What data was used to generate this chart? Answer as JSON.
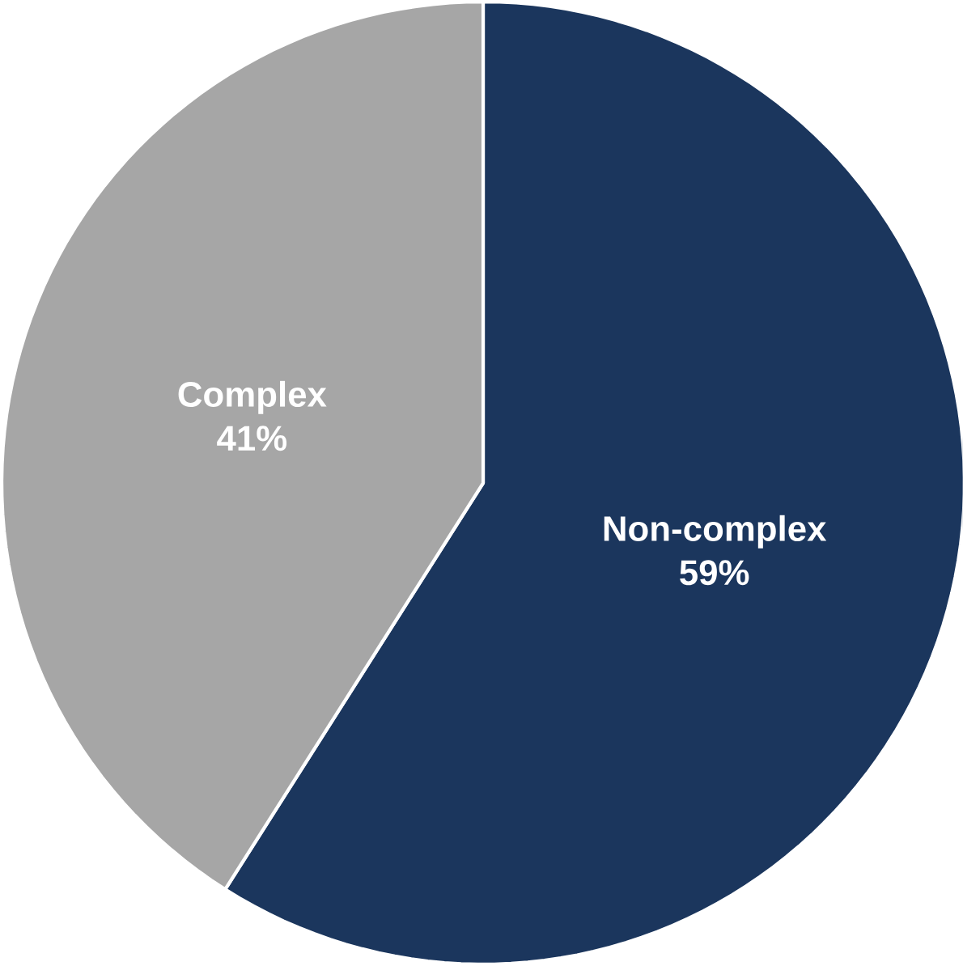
{
  "chart_data": {
    "type": "pie",
    "categories": [
      "Non-complex",
      "Complex"
    ],
    "values": [
      59,
      41
    ],
    "colors": [
      "#1b365d",
      "#a6a6a6"
    ],
    "value_labels": [
      "59%",
      "41%"
    ]
  }
}
